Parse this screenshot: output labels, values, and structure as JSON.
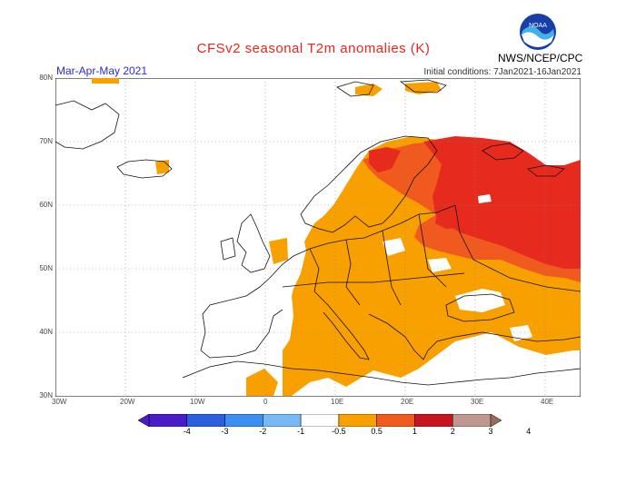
{
  "header": {
    "title": "CFSv2 seasonal T2m anomalies (K)",
    "period": "Mar-Apr-May 2021",
    "initial_conditions": "Initial conditions: 7Jan2021-16Jan2021",
    "agency": "NWS/NCEP/CPC",
    "logo_text": "NOAA"
  },
  "map": {
    "lat_labels": [
      "80N",
      "70N",
      "60N",
      "50N",
      "40N",
      "30N"
    ],
    "lon_labels": [
      "30W",
      "20W",
      "10W",
      "0",
      "10E",
      "20E",
      "30E",
      "40E"
    ],
    "colors": {
      "light_orange": "#f8a000",
      "orange_red": "#f05a1e",
      "red": "#e62a1e",
      "land_line": "#111111",
      "grid": "#888888"
    }
  },
  "colorbar": {
    "ticks": [
      "-4",
      "-3",
      "-2",
      "-1",
      "-0.5",
      "0.5",
      "1",
      "2",
      "3",
      "4"
    ],
    "colors": [
      "#4b1bc8",
      "#2b5fe0",
      "#3c8ef0",
      "#78b8f5",
      "#ffffff",
      "#f8a000",
      "#f05a1e",
      "#c8141e",
      "#c09890"
    ]
  }
}
